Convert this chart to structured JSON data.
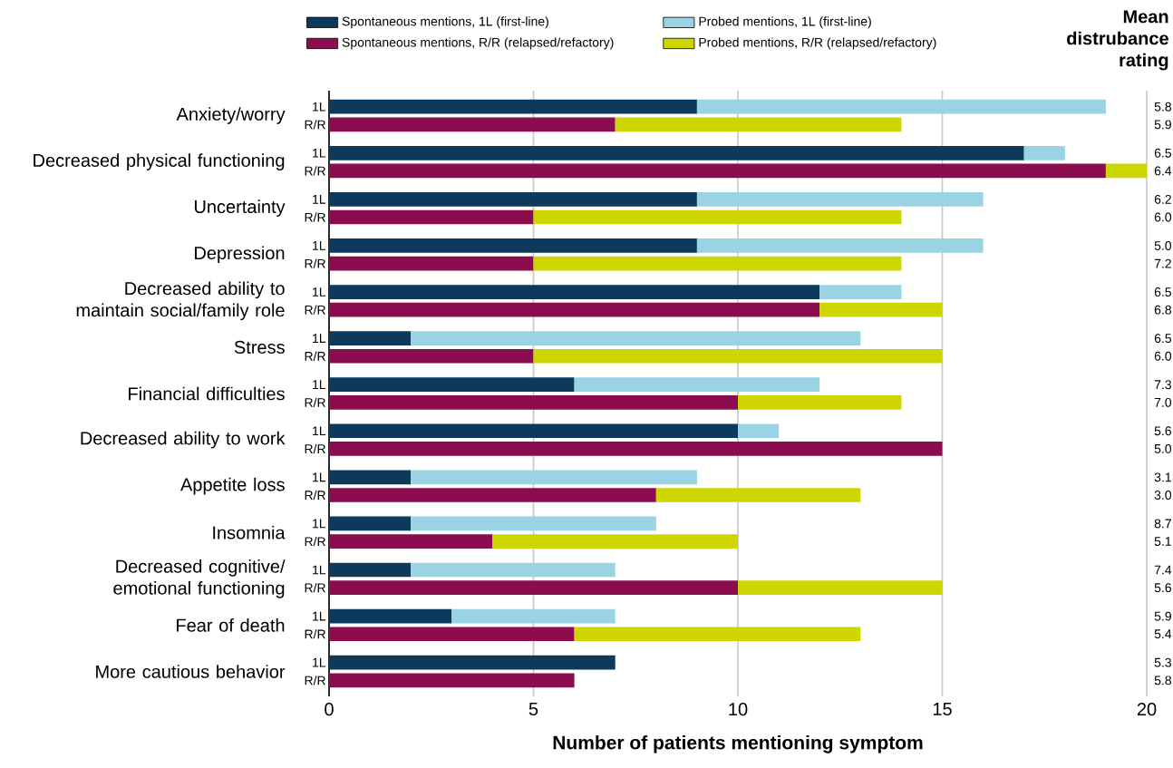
{
  "chart_data": {
    "type": "bar",
    "orientation": "horizontal",
    "stacked": true,
    "categories": [
      "1L",
      "R/R",
      "1L",
      "R/R",
      "1L",
      "R/R",
      "1L",
      "R/R",
      "1L",
      "R/R",
      "1L",
      "R/R",
      "1L",
      "R/R",
      "1L",
      "R/R",
      "1L",
      "R/R",
      "1L",
      "R/R",
      "1L",
      "R/R",
      "1L",
      "R/R",
      "1L",
      "R/R"
    ],
    "series": [
      {
        "name": "Spontaneous mentions, 1L (first-line)",
        "color": "#0d3a5c",
        "values": [
          9,
          null,
          17,
          null,
          9,
          null,
          9,
          null,
          12,
          null,
          2,
          null,
          6,
          null,
          10,
          null,
          2,
          null,
          2,
          null,
          2,
          null,
          3,
          null,
          7,
          null
        ]
      },
      {
        "name": "Probed mentions, 1L (first-line)",
        "color": "#9ad3e3",
        "values": [
          10,
          null,
          1,
          null,
          7,
          null,
          7,
          null,
          2,
          null,
          11,
          null,
          6,
          null,
          1,
          null,
          7,
          null,
          6,
          null,
          5,
          null,
          4,
          null,
          null,
          null
        ]
      },
      {
        "name": "Spontaneous mentions, R/R (relapsed/refactory)",
        "color": "#8c0d4f",
        "values": [
          null,
          7,
          null,
          19,
          null,
          5,
          null,
          5,
          null,
          12,
          null,
          5,
          null,
          10,
          null,
          15,
          null,
          8,
          null,
          4,
          null,
          10,
          null,
          6,
          null,
          6
        ]
      },
      {
        "name": "Probed mentions, R/R (relapsed/refactory)",
        "color": "#cdd600",
        "values": [
          null,
          7,
          null,
          1,
          null,
          9,
          null,
          9,
          null,
          3,
          null,
          10,
          null,
          4,
          null,
          null,
          null,
          5,
          null,
          6,
          null,
          5,
          null,
          7,
          null,
          null
        ]
      }
    ],
    "xlabel": "Number of patients mentioning symptom",
    "y2label": "Mean distrubance rating",
    "xlim": [
      0,
      20
    ],
    "xticks": [
      0,
      5,
      10,
      15,
      20
    ],
    "grid": "x",
    "legend": "top",
    "annotations": [
      "Anxiety/worry",
      "Decreased physical functioning",
      "Uncertainty",
      "Depression",
      "Decreased ability to maintain social/family role",
      "Stress",
      "Financial difficulties",
      "Decreased ability to work",
      "Appetite loss",
      "Insomnia",
      "Decreased cognitive/ emotional functioning",
      "Fear of death",
      "More cautious behavior",
      "5.8",
      "5.9",
      "6.5",
      "6.4",
      "6.2",
      "6.0",
      "5.0",
      "7.2",
      "6.5",
      "6.8",
      "6.5",
      "6.0",
      "7.3",
      "7.0",
      "5.6",
      "5.0",
      "3.1",
      "3.0",
      "8.7",
      "5.1",
      "7.4",
      "5.6",
      "5.9",
      "5.4",
      "5.3",
      "5.8"
    ]
  }
}
